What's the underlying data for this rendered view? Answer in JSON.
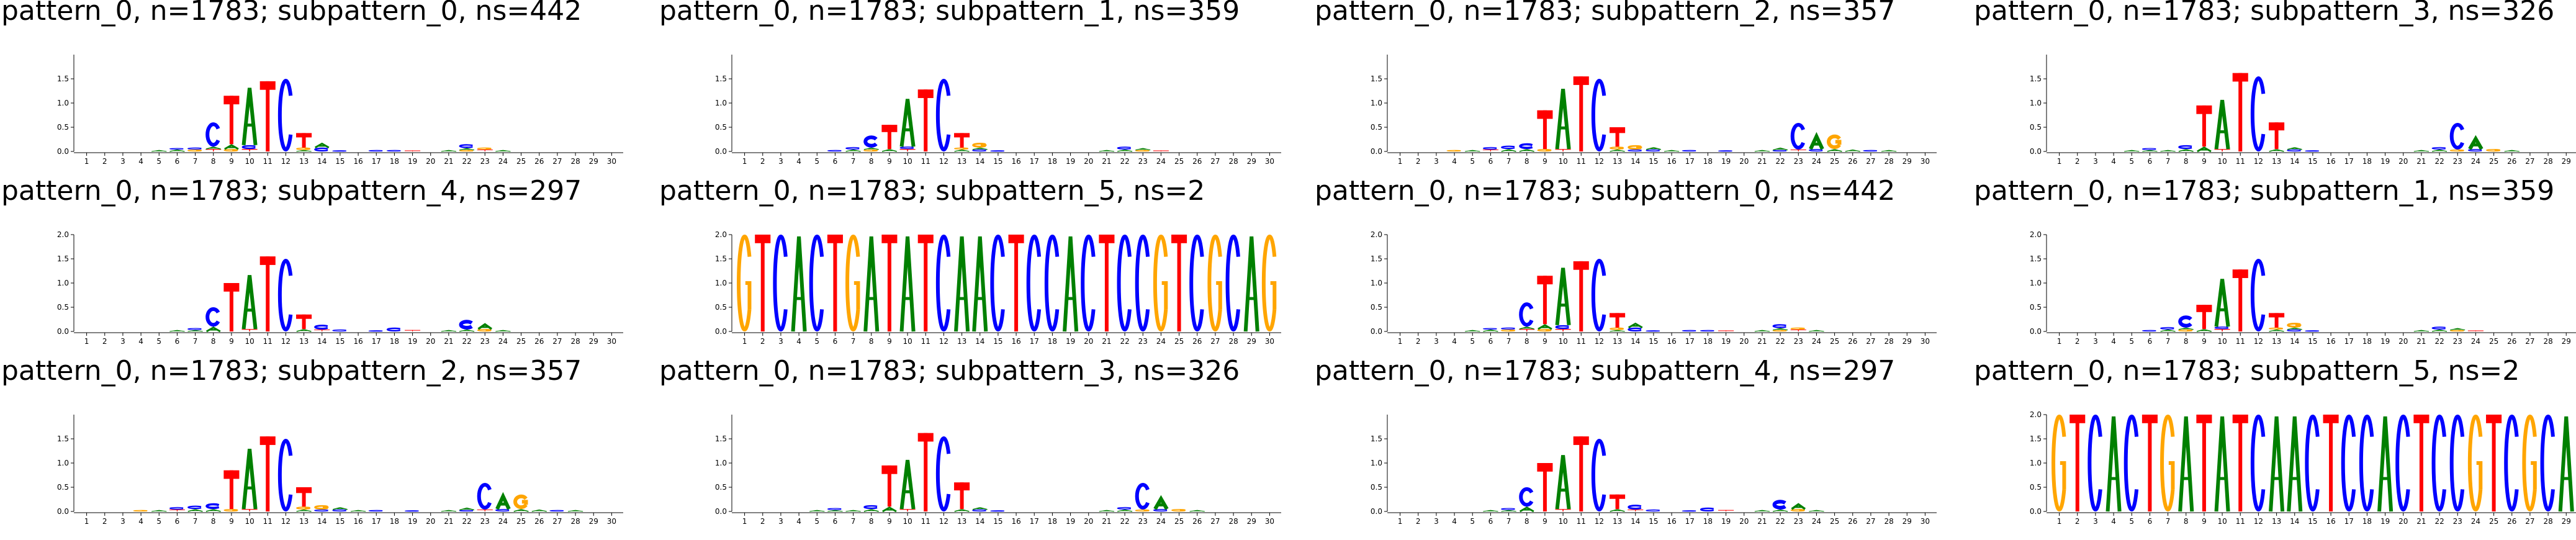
{
  "chart_data": [
    {
      "type": "sequence-logo",
      "title": "pattern_0, n=1783; subpattern_0, ns=442",
      "ylim": [
        0,
        2
      ],
      "yticks": [
        "0.0",
        "0.5",
        "1.0",
        "1.5"
      ],
      "positions": 30,
      "profile": "S0"
    },
    {
      "type": "sequence-logo",
      "title": "pattern_0, n=1783; subpattern_1, ns=359",
      "ylim": [
        0,
        2
      ],
      "yticks": [
        "0.0",
        "0.5",
        "1.0",
        "1.5"
      ],
      "positions": 30,
      "profile": "S1"
    },
    {
      "type": "sequence-logo",
      "title": "pattern_0, n=1783; subpattern_2, ns=357",
      "ylim": [
        0,
        2
      ],
      "yticks": [
        "0.0",
        "0.5",
        "1.0",
        "1.5"
      ],
      "positions": 30,
      "profile": "S2"
    },
    {
      "type": "sequence-logo",
      "title": "pattern_0, n=1783; subpattern_3, ns=326",
      "ylim": [
        0,
        2
      ],
      "yticks": [
        "0.0",
        "0.5",
        "1.0",
        "1.5"
      ],
      "positions": 30,
      "profile": "S3"
    },
    {
      "type": "sequence-logo",
      "title": "pattern_0, n=1783; subpattern_4, ns=297",
      "ylim": [
        0,
        2
      ],
      "yticks": [
        "0.0",
        "0.5",
        "1.0",
        "1.5",
        "2.0"
      ],
      "positions": 30,
      "profile": "S4"
    },
    {
      "type": "sequence-logo",
      "title": "pattern_0, n=1783; subpattern_5, ns=2",
      "ylim": [
        0,
        2
      ],
      "yticks": [
        "0.0",
        "0.5",
        "1.0",
        "1.5",
        "2.0"
      ],
      "positions": 30,
      "profile": "S5"
    },
    {
      "type": "sequence-logo",
      "title": "pattern_0, n=1783; subpattern_0, ns=442",
      "ylim": [
        0,
        2
      ],
      "yticks": [
        "0.0",
        "0.5",
        "1.0",
        "1.5",
        "2.0"
      ],
      "positions": 30,
      "profile": "S0"
    },
    {
      "type": "sequence-logo",
      "title": "pattern_0, n=1783; subpattern_1, ns=359",
      "ylim": [
        0,
        2
      ],
      "yticks": [
        "0.0",
        "0.5",
        "1.0",
        "1.5",
        "2.0"
      ],
      "positions": 30,
      "profile": "S1"
    },
    {
      "type": "sequence-logo",
      "title": "pattern_0, n=1783; subpattern_2, ns=357",
      "ylim": [
        0,
        2
      ],
      "yticks": [
        "0.0",
        "0.5",
        "1.0",
        "1.5"
      ],
      "positions": 30,
      "profile": "S2"
    },
    {
      "type": "sequence-logo",
      "title": "pattern_0, n=1783; subpattern_3, ns=326",
      "ylim": [
        0,
        2
      ],
      "yticks": [
        "0.0",
        "0.5",
        "1.0",
        "1.5"
      ],
      "positions": 30,
      "profile": "S3"
    },
    {
      "type": "sequence-logo",
      "title": "pattern_0, n=1783; subpattern_4, ns=297",
      "ylim": [
        0,
        2
      ],
      "yticks": [
        "0.0",
        "0.5",
        "1.0",
        "1.5"
      ],
      "positions": 30,
      "profile": "S4"
    },
    {
      "type": "sequence-logo",
      "title": "pattern_0, n=1783; subpattern_5, ns=2",
      "ylim": [
        0,
        2
      ],
      "yticks": [
        "0.0",
        "0.5",
        "1.0",
        "1.5",
        "2.0"
      ],
      "positions": 30,
      "profile": "S5"
    }
  ],
  "profiles": {
    "S0": [
      [],
      [],
      [],
      [],
      [
        [
          "A",
          0.03
        ]
      ],
      [
        [
          "A",
          0.04
        ],
        [
          "C",
          0.03
        ]
      ],
      [
        [
          "G",
          0.04
        ],
        [
          "C",
          0.04
        ]
      ],
      [
        [
          "T",
          0.05
        ],
        [
          "A",
          0.05
        ],
        [
          "C",
          0.5
        ]
      ],
      [
        [
          "G",
          0.05
        ],
        [
          "A",
          0.1
        ],
        [
          "T",
          1.0
        ]
      ],
      [
        [
          "T",
          0.05
        ],
        [
          "C",
          0.08
        ],
        [
          "A",
          1.22
        ]
      ],
      [
        [
          "T",
          1.45
        ]
      ],
      [
        [
          "C",
          1.5
        ]
      ],
      [
        [
          "A",
          0.03
        ],
        [
          "G",
          0.05
        ],
        [
          "T",
          0.3
        ]
      ],
      [
        [
          "C",
          0.08
        ],
        [
          "A",
          0.1
        ]
      ],
      [
        [
          "C",
          0.02
        ]
      ],
      [],
      [
        [
          "C",
          0.03
        ]
      ],
      [
        [
          "C",
          0.03
        ]
      ],
      [
        [
          "T",
          0.02
        ]
      ],
      [],
      [
        [
          "A",
          0.03
        ]
      ],
      [
        [
          "G",
          0.03
        ],
        [
          "A",
          0.04
        ],
        [
          "C",
          0.08
        ]
      ],
      [
        [
          "T",
          0.04
        ],
        [
          "G",
          0.04
        ]
      ],
      [
        [
          "A",
          0.03
        ]
      ],
      [],
      [],
      [],
      [],
      [],
      []
    ],
    "S1": [
      [],
      [],
      [],
      [],
      [],
      [
        [
          "C",
          0.03
        ]
      ],
      [
        [
          "A",
          0.04
        ],
        [
          "C",
          0.05
        ]
      ],
      [
        [
          "G",
          0.04
        ],
        [
          "A",
          0.04
        ],
        [
          "C",
          0.25
        ]
      ],
      [
        [
          "A",
          0.05
        ],
        [
          "T",
          0.5
        ]
      ],
      [
        [
          "T",
          0.05
        ],
        [
          "C",
          0.05
        ],
        [
          "A",
          1.02
        ]
      ],
      [
        [
          "T",
          1.28
        ]
      ],
      [
        [
          "C",
          1.5
        ]
      ],
      [
        [
          "A",
          0.04
        ],
        [
          "G",
          0.04
        ],
        [
          "T",
          0.3
        ]
      ],
      [
        [
          "C",
          0.04
        ],
        [
          "A",
          0.04
        ],
        [
          "G",
          0.1
        ]
      ],
      [
        [
          "C",
          0.02
        ]
      ],
      [],
      [],
      [],
      [],
      [],
      [
        [
          "A",
          0.03
        ]
      ],
      [
        [
          "A",
          0.04
        ],
        [
          "C",
          0.06
        ]
      ],
      [
        [
          "G",
          0.03
        ],
        [
          "A",
          0.04
        ]
      ],
      [
        [
          "T",
          0.02
        ]
      ],
      [],
      [],
      [],
      [],
      [],
      []
    ],
    "S2": [
      [],
      [],
      [],
      [
        [
          "G",
          0.03
        ]
      ],
      [
        [
          "A",
          0.03
        ]
      ],
      [
        [
          "T",
          0.04
        ],
        [
          "C",
          0.05
        ]
      ],
      [
        [
          "A",
          0.05
        ],
        [
          "C",
          0.07
        ]
      ],
      [
        [
          "A",
          0.05
        ],
        [
          "C",
          0.12
        ]
      ],
      [
        [
          "G",
          0.05
        ],
        [
          "T",
          0.8
        ]
      ],
      [
        [
          "T",
          0.05
        ],
        [
          "A",
          1.28
        ]
      ],
      [
        [
          "T",
          1.55
        ]
      ],
      [
        [
          "C",
          1.5
        ]
      ],
      [
        [
          "A",
          0.04
        ],
        [
          "G",
          0.06
        ],
        [
          "T",
          0.4
        ]
      ],
      [
        [
          "C",
          0.04
        ],
        [
          "G",
          0.09
        ]
      ],
      [
        [
          "C",
          0.04
        ],
        [
          "A",
          0.05
        ]
      ],
      [
        [
          "A",
          0.03
        ]
      ],
      [
        [
          "C",
          0.03
        ]
      ],
      [],
      [
        [
          "C",
          0.02
        ]
      ],
      [],
      [
        [
          "A",
          0.03
        ]
      ],
      [
        [
          "C",
          0.03
        ],
        [
          "A",
          0.05
        ]
      ],
      [
        [
          "T",
          0.04
        ],
        [
          "C",
          0.55
        ]
      ],
      [
        [
          "C",
          0.05
        ],
        [
          "A",
          0.3
        ]
      ],
      [
        [
          "A",
          0.05
        ],
        [
          "G",
          0.3
        ]
      ],
      [
        [
          "A",
          0.04
        ]
      ],
      [
        [
          "C",
          0.03
        ]
      ],
      [
        [
          "A",
          0.03
        ]
      ],
      [],
      []
    ],
    "S3": [
      [],
      [],
      [],
      [],
      [
        [
          "A",
          0.03
        ]
      ],
      [
        [
          "A",
          0.03
        ],
        [
          "C",
          0.04
        ]
      ],
      [
        [
          "A",
          0.03
        ]
      ],
      [
        [
          "A",
          0.05
        ],
        [
          "C",
          0.08
        ]
      ],
      [
        [
          "A",
          0.1
        ],
        [
          "T",
          0.85
        ]
      ],
      [
        [
          "T",
          0.05
        ],
        [
          "A",
          1.05
        ]
      ],
      [
        [
          "T",
          1.62
        ]
      ],
      [
        [
          "C",
          1.55
        ]
      ],
      [
        [
          "A",
          0.05
        ],
        [
          "T",
          0.55
        ]
      ],
      [
        [
          "C",
          0.04
        ],
        [
          "A",
          0.05
        ]
      ],
      [
        [
          "C",
          0.02
        ]
      ],
      [],
      [],
      [],
      [],
      [],
      [
        [
          "A",
          0.03
        ]
      ],
      [
        [
          "A",
          0.04
        ],
        [
          "C",
          0.05
        ]
      ],
      [
        [
          "G",
          0.04
        ],
        [
          "C",
          0.55
        ]
      ],
      [
        [
          "C",
          0.05
        ],
        [
          "A",
          0.25
        ]
      ],
      [
        [
          "G",
          0.05
        ]
      ],
      [
        [
          "A",
          0.03
        ]
      ],
      [],
      [],
      [],
      []
    ],
    "S4": [
      [],
      [],
      [],
      [],
      [],
      [
        [
          "A",
          0.03
        ]
      ],
      [
        [
          "A",
          0.03
        ],
        [
          "C",
          0.04
        ]
      ],
      [
        [
          "A",
          0.1
        ],
        [
          "C",
          0.4
        ]
      ],
      [
        [
          "T",
          1.0
        ]
      ],
      [
        [
          "T",
          0.05
        ],
        [
          "A",
          1.15
        ]
      ],
      [
        [
          "T",
          1.55
        ]
      ],
      [
        [
          "C",
          1.5
        ]
      ],
      [
        [
          "A",
          0.05
        ],
        [
          "T",
          0.3
        ]
      ],
      [
        [
          "T",
          0.04
        ],
        [
          "C",
          0.1
        ]
      ],
      [
        [
          "C",
          0.04
        ]
      ],
      [],
      [
        [
          "C",
          0.02
        ]
      ],
      [
        [
          "C",
          0.08
        ]
      ],
      [
        [
          "T",
          0.03
        ]
      ],
      [],
      [
        [
          "A",
          0.03
        ]
      ],
      [
        [
          "A",
          0.04
        ],
        [
          "C",
          0.2
        ]
      ],
      [
        [
          "G",
          0.05
        ],
        [
          "A",
          0.12
        ]
      ],
      [
        [
          "A",
          0.03
        ]
      ],
      [],
      [],
      [],
      [],
      [],
      []
    ],
    "S5": [
      [
        [
          "G",
          2.0
        ]
      ],
      [
        [
          "T",
          2.0
        ]
      ],
      [
        [
          "C",
          2.0
        ]
      ],
      [
        [
          "A",
          2.0
        ]
      ],
      [
        [
          "C",
          2.0
        ]
      ],
      [
        [
          "T",
          2.0
        ]
      ],
      [
        [
          "G",
          2.0
        ]
      ],
      [
        [
          "A",
          2.0
        ]
      ],
      [
        [
          "T",
          2.0
        ]
      ],
      [
        [
          "A",
          2.0
        ]
      ],
      [
        [
          "T",
          2.0
        ]
      ],
      [
        [
          "C",
          2.0
        ]
      ],
      [
        [
          "A",
          2.0
        ]
      ],
      [
        [
          "A",
          2.0
        ]
      ],
      [
        [
          "C",
          2.0
        ]
      ],
      [
        [
          "T",
          2.0
        ]
      ],
      [
        [
          "C",
          2.0
        ]
      ],
      [
        [
          "C",
          2.0
        ]
      ],
      [
        [
          "A",
          2.0
        ]
      ],
      [
        [
          "C",
          2.0
        ]
      ],
      [
        [
          "T",
          2.0
        ]
      ],
      [
        [
          "C",
          2.0
        ]
      ],
      [
        [
          "C",
          2.0
        ]
      ],
      [
        [
          "G",
          2.0
        ]
      ],
      [
        [
          "T",
          2.0
        ]
      ],
      [
        [
          "C",
          2.0
        ]
      ],
      [
        [
          "G",
          2.0
        ]
      ],
      [
        [
          "C",
          2.0
        ]
      ],
      [
        [
          "A",
          2.0
        ]
      ],
      [
        [
          "G",
          2.0
        ]
      ]
    ]
  },
  "colors": {
    "A": "#008000",
    "C": "#0000ff",
    "G": "#ffa500",
    "T": "#ff0000",
    "axis": "#000000"
  }
}
